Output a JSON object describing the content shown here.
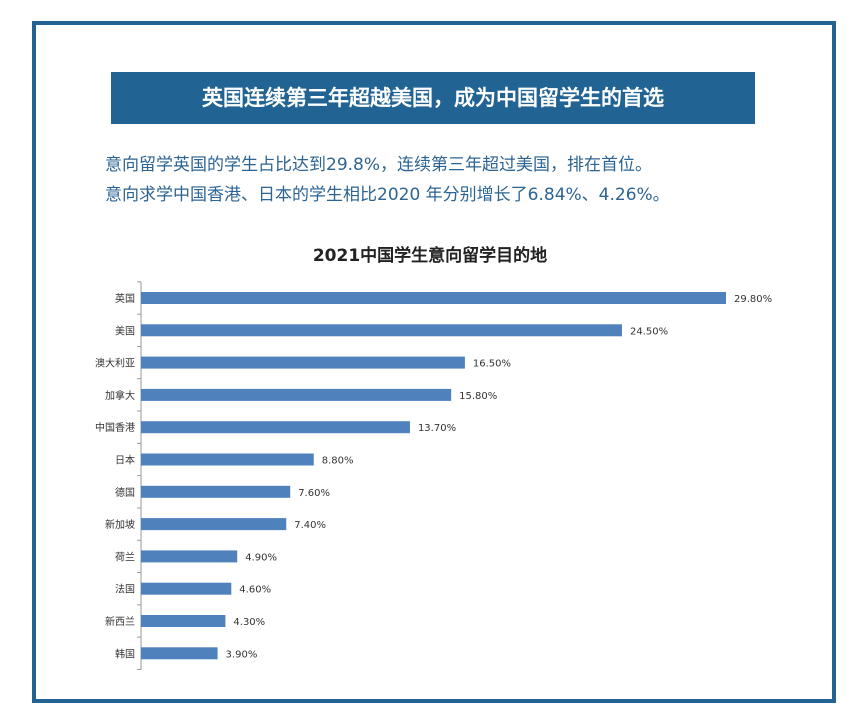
{
  "banner": {
    "title": "英国连续第三年超越美国，成为中国留学生的首选"
  },
  "intro": {
    "line1": "意向留学英国的学生占比达到29.8%，连续第三年超过美国，排在首位。",
    "line2": "意向求学中国香港、日本的学生相比2020 年分别增长了6.84%、4.26%。"
  },
  "colors": {
    "frame": "#236394",
    "banner": "#216392",
    "bar": "#4f81bd",
    "text": "#2c6493"
  },
  "chart_data": {
    "type": "bar",
    "orientation": "horizontal",
    "title": "2021中国学生意向留学目的地",
    "categories": [
      "英国",
      "美国",
      "澳大利亚",
      "加拿大",
      "中国香港",
      "日本",
      "德国",
      "新加坡",
      "荷兰",
      "法国",
      "新西兰",
      "韩国"
    ],
    "values": [
      29.8,
      24.5,
      16.5,
      15.8,
      13.7,
      8.8,
      7.6,
      7.4,
      4.9,
      4.6,
      4.3,
      3.9
    ],
    "data_labels": [
      "29.80%",
      "24.50%",
      "16.50%",
      "15.80%",
      "13.70%",
      "8.80%",
      "7.60%",
      "7.40%",
      "4.90%",
      "4.60%",
      "4.30%",
      "3.90%"
    ],
    "unit": "%",
    "grid": false,
    "legend": "none"
  }
}
